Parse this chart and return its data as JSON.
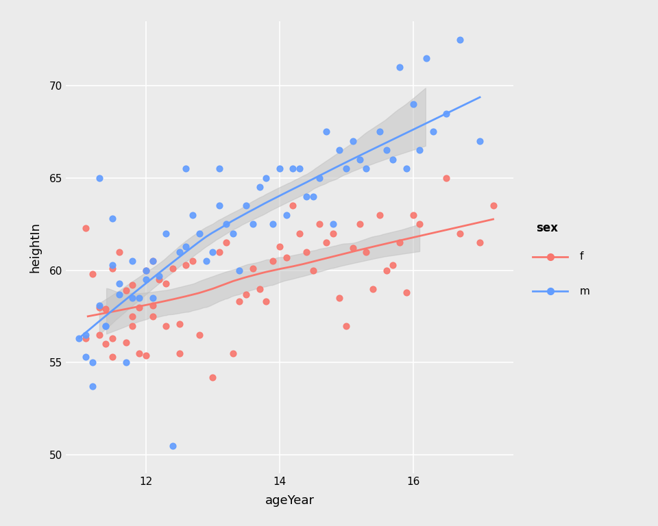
{
  "title": "",
  "xlabel": "ageYear",
  "ylabel": "heightIn",
  "legend_title": "sex",
  "bg_color": "#EBEBEB",
  "panel_bg": "#EBEBEB",
  "grid_color": "#FFFFFF",
  "female_color": "#F8766D",
  "male_color": "#619CFF",
  "ci_color": "#C0C0C0",
  "ci_alpha": 0.5,
  "ylim": [
    49,
    73.5
  ],
  "xlim": [
    10.8,
    17.5
  ],
  "yticks": [
    50,
    55,
    60,
    65,
    70
  ],
  "xticks": [
    12,
    14,
    16
  ],
  "female_data": {
    "age": [
      11.1,
      11.1,
      11.2,
      11.3,
      11.3,
      11.4,
      11.4,
      11.5,
      11.5,
      11.5,
      11.6,
      11.7,
      11.7,
      11.8,
      11.8,
      11.8,
      11.9,
      11.9,
      12.0,
      12.0,
      12.1,
      12.1,
      12.1,
      12.2,
      12.3,
      12.3,
      12.4,
      12.5,
      12.5,
      12.6,
      12.7,
      12.8,
      13.0,
      13.1,
      13.2,
      13.3,
      13.4,
      13.5,
      13.6,
      13.7,
      13.8,
      13.9,
      14.0,
      14.1,
      14.2,
      14.3,
      14.4,
      14.5,
      14.6,
      14.7,
      14.8,
      14.9,
      15.0,
      15.1,
      15.2,
      15.3,
      15.4,
      15.5,
      15.6,
      15.7,
      15.8,
      15.9,
      16.0,
      16.1,
      16.5,
      16.7,
      17.0,
      17.2
    ],
    "height": [
      56.3,
      62.3,
      59.8,
      56.5,
      58.0,
      56.0,
      57.9,
      56.3,
      55.3,
      60.1,
      61.0,
      58.9,
      56.1,
      57.5,
      59.2,
      57.0,
      55.5,
      58.0,
      55.4,
      60.0,
      57.5,
      60.5,
      58.1,
      59.5,
      57.0,
      59.3,
      60.1,
      55.5,
      57.1,
      60.3,
      60.5,
      56.5,
      54.2,
      61.0,
      61.5,
      55.5,
      58.3,
      58.7,
      60.1,
      59.0,
      58.3,
      60.5,
      61.3,
      60.7,
      63.5,
      62.0,
      61.0,
      60.0,
      62.5,
      61.5,
      62.0,
      58.5,
      57.0,
      61.2,
      62.5,
      61.0,
      59.0,
      63.0,
      60.0,
      60.3,
      61.5,
      58.8,
      63.0,
      62.5,
      65.0,
      62.0,
      61.5,
      63.5
    ]
  },
  "male_data": {
    "age": [
      11.0,
      11.1,
      11.1,
      11.2,
      11.2,
      11.3,
      11.3,
      11.4,
      11.4,
      11.5,
      11.5,
      11.6,
      11.6,
      11.7,
      11.8,
      11.8,
      11.9,
      12.0,
      12.0,
      12.1,
      12.1,
      12.2,
      12.3,
      12.4,
      12.5,
      12.6,
      12.6,
      12.7,
      12.8,
      12.9,
      13.0,
      13.1,
      13.1,
      13.2,
      13.3,
      13.4,
      13.5,
      13.6,
      13.7,
      13.8,
      13.9,
      14.0,
      14.1,
      14.2,
      14.3,
      14.4,
      14.5,
      14.6,
      14.7,
      14.8,
      14.9,
      15.0,
      15.1,
      15.2,
      15.3,
      15.5,
      15.6,
      15.7,
      15.8,
      15.9,
      16.0,
      16.1,
      16.2,
      16.3,
      16.5,
      16.7,
      17.0
    ],
    "height": [
      56.3,
      56.5,
      55.3,
      53.7,
      55.0,
      58.1,
      65.0,
      57.0,
      57.0,
      60.3,
      62.8,
      58.7,
      59.3,
      55.0,
      58.5,
      60.5,
      58.5,
      59.5,
      60.0,
      58.5,
      60.5,
      59.7,
      62.0,
      50.5,
      61.0,
      61.3,
      65.5,
      63.0,
      62.0,
      60.5,
      61.0,
      63.5,
      65.5,
      62.5,
      62.0,
      60.0,
      63.5,
      62.5,
      64.5,
      65.0,
      62.5,
      65.5,
      63.0,
      65.5,
      65.5,
      64.0,
      64.0,
      65.0,
      67.5,
      62.5,
      66.5,
      65.5,
      67.0,
      66.0,
      65.5,
      67.5,
      66.5,
      66.0,
      71.0,
      65.5,
      69.0,
      66.5,
      71.5,
      67.5,
      68.5,
      72.5,
      67.0
    ]
  }
}
